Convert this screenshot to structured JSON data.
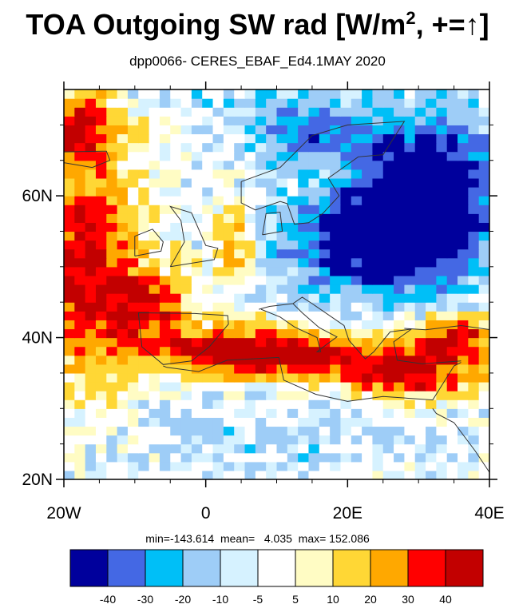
{
  "title": {
    "main": "TOA Outgoing SW rad [W/m",
    "sup": "2",
    "tail": ", +=↑]"
  },
  "subtitle": "dpp0066- CERES_EBAF_Ed4.1MAY 2020",
  "stats": "min=-143.614  mean=   4.035  max= 152.086",
  "chart_data": {
    "type": "heatmap",
    "title": "TOA Outgoing SW rad [W/m2, +=↑]",
    "subtitle": "dpp0066- CERES_EBAF_Ed4.1MAY 2020",
    "x_axis": {
      "range": [
        -20,
        40
      ],
      "ticks": [
        -20,
        0,
        20,
        40
      ],
      "tick_labels": [
        "20W",
        "0",
        "20E",
        "40E"
      ]
    },
    "y_axis": {
      "range": [
        20,
        75
      ],
      "ticks": [
        20,
        40,
        60
      ],
      "tick_labels": [
        "20N",
        "40N",
        "60N"
      ]
    },
    "colorbar": {
      "levels": [
        -40,
        -30,
        -20,
        -10,
        -5,
        5,
        10,
        20,
        30,
        40
      ],
      "labels": [
        "-40",
        "-30",
        "-20",
        "-10",
        "-5",
        "5",
        "10",
        "20",
        "30",
        "40"
      ],
      "colors": [
        "#00009c",
        "#4468e4",
        "#00bff7",
        "#9ecdf7",
        "#d6f2ff",
        "#ffffff",
        "#fffcc4",
        "#ffd735",
        "#ffa800",
        "#ff0000",
        "#c20000"
      ]
    },
    "statistics": {
      "min": -143.614,
      "mean": 4.035,
      "max": 152.086
    }
  }
}
